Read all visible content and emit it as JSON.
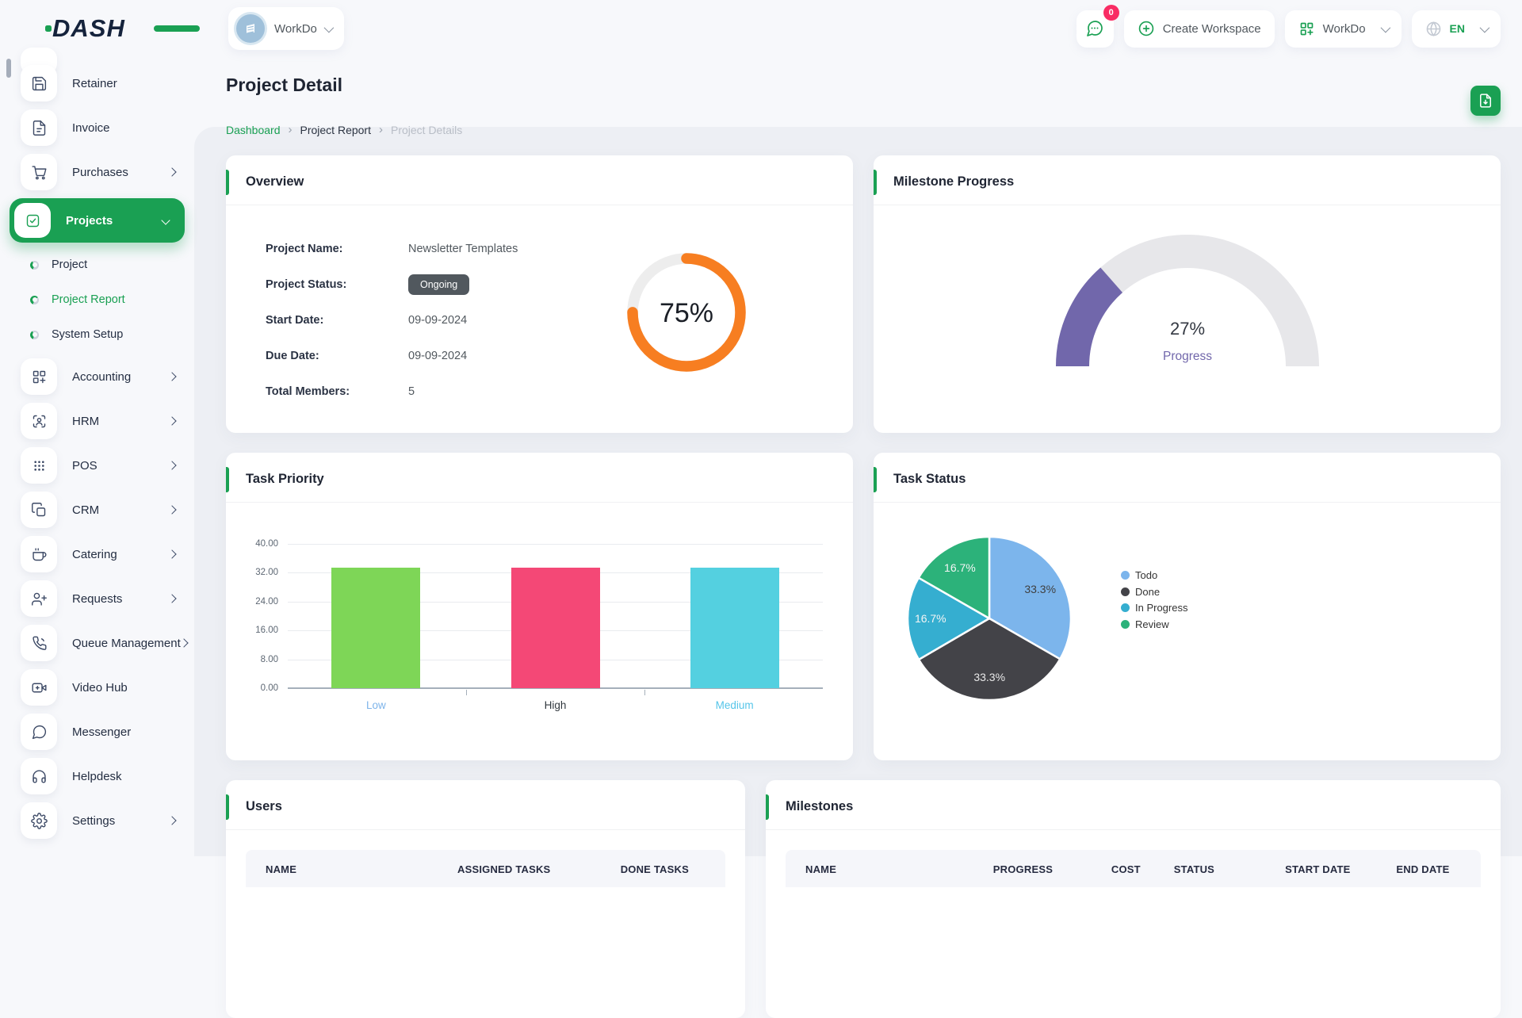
{
  "brand": {
    "logo_text": "DASH"
  },
  "topbar": {
    "workspace_switcher": {
      "name": "WorkDo"
    },
    "chat_badge": "0",
    "create_workspace_label": "Create Workspace",
    "workspace_menu_label": "WorkDo",
    "language": "EN"
  },
  "sidebar": {
    "items": [
      {
        "label": "Retainer",
        "icon": "retainer-icon",
        "type": "item"
      },
      {
        "label": "Invoice",
        "icon": "invoice-icon",
        "type": "item"
      },
      {
        "label": "Purchases",
        "icon": "purchases-icon",
        "type": "item",
        "chevron": "right"
      },
      {
        "label": "Projects",
        "icon": "projects-icon",
        "type": "item",
        "chevron": "down",
        "active": true
      },
      {
        "label": "Project",
        "type": "sub"
      },
      {
        "label": "Project Report",
        "type": "sub",
        "active": true
      },
      {
        "label": "System Setup",
        "type": "sub"
      },
      {
        "label": "Accounting",
        "icon": "accounting-icon",
        "type": "item",
        "chevron": "right"
      },
      {
        "label": "HRM",
        "icon": "hrm-icon",
        "type": "item",
        "chevron": "right"
      },
      {
        "label": "POS",
        "icon": "pos-icon",
        "type": "item",
        "chevron": "right"
      },
      {
        "label": "CRM",
        "icon": "crm-icon",
        "type": "item",
        "chevron": "right"
      },
      {
        "label": "Catering",
        "icon": "catering-icon",
        "type": "item",
        "chevron": "right"
      },
      {
        "label": "Requests",
        "icon": "requests-icon",
        "type": "item",
        "chevron": "right"
      },
      {
        "label": "Queue Management",
        "icon": "queue-management-icon",
        "type": "item",
        "chevron": "right"
      },
      {
        "label": "Video Hub",
        "icon": "video-hub-icon",
        "type": "item"
      },
      {
        "label": "Messenger",
        "icon": "messenger-icon",
        "type": "item"
      },
      {
        "label": "Helpdesk",
        "icon": "helpdesk-icon",
        "type": "item"
      },
      {
        "label": "Settings",
        "icon": "settings-icon",
        "type": "item",
        "chevron": "right"
      }
    ]
  },
  "page": {
    "title": "Project Detail",
    "breadcrumb": [
      "Dashboard",
      "Project Report",
      "Project Details"
    ]
  },
  "overview": {
    "title": "Overview",
    "name_label": "Project Name:",
    "name_value": "Newsletter Templates",
    "status_label": "Project Status:",
    "status_badge": "Ongoing",
    "start_label": "Start Date:",
    "start_value": "09-09-2024",
    "due_label": "Due Date:",
    "due_value": "09-09-2024",
    "members_label": "Total Members:",
    "members_value": "5"
  },
  "milestone_progress": {
    "title": "Milestone Progress"
  },
  "task_priority": {
    "title": "Task Priority"
  },
  "task_status": {
    "title": "Task Status"
  },
  "users_table": {
    "title": "Users",
    "columns": [
      "NAME",
      "ASSIGNED TASKS",
      "DONE TASKS"
    ],
    "rows": []
  },
  "milestones_table": {
    "title": "Milestones",
    "columns": [
      "NAME",
      "PROGRESS",
      "COST",
      "STATUS",
      "START DATE",
      "END DATE"
    ],
    "rows": []
  },
  "chart_data": [
    {
      "type": "donut",
      "title": "Overview project completion",
      "value_pct": 75,
      "center_label": "75%",
      "color": "#F77E21",
      "track_color": "#ededed"
    },
    {
      "type": "gauge",
      "title": "Milestone Progress",
      "value_pct": 27,
      "center_label": "27%",
      "sub_label": "Progress",
      "color": "#7167AB",
      "track_color": "#e7e7ea"
    },
    {
      "type": "bar",
      "title": "Task Priority",
      "categories": [
        "Low",
        "High",
        "Medium"
      ],
      "values": [
        33.33,
        33.33,
        33.33
      ],
      "bar_colors": [
        "#7ED657",
        "#F44876",
        "#54D0E0"
      ],
      "category_label_colors": [
        "#7db4ea",
        "#32393f",
        "#55c5e9"
      ],
      "ylabel": "",
      "xlabel": "",
      "ylim": [
        0,
        40
      ],
      "yticks": [
        "0.00",
        "8.00",
        "16.00",
        "24.00",
        "32.00",
        "40.00"
      ],
      "grid": true
    },
    {
      "type": "pie",
      "title": "Task Status",
      "labels": [
        "Todo",
        "Done",
        "In Progress",
        "Review"
      ],
      "values": [
        33.3,
        33.3,
        16.7,
        16.7
      ],
      "slice_labels": [
        "33.3%",
        "33.3%",
        "16.7%",
        "16.7%"
      ],
      "colors": [
        "#7CB5EC",
        "#434348",
        "#35AED0",
        "#2CB27A"
      ],
      "slice_label_colors": [
        "#3f3f3f",
        "#e9e9e9",
        "#f5f5f5",
        "#f5f5f5"
      ],
      "legend_position": "right"
    }
  ],
  "colors": {
    "primary_green": "#1AA053",
    "badge_pink": "#F92C64",
    "donut_orange": "#F77E21",
    "gauge_purple": "#7167AB"
  }
}
